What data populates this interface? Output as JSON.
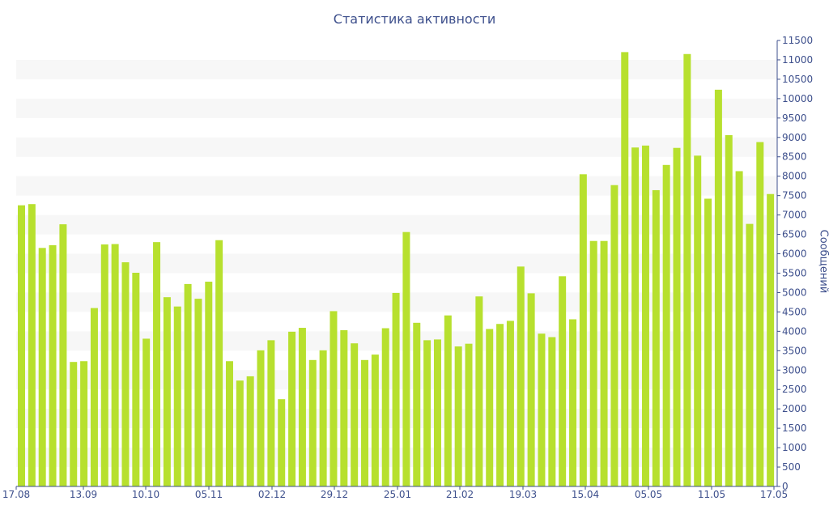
{
  "chart_data": {
    "type": "bar",
    "title": "Статистика активности",
    "xlabel": "",
    "ylabel": "Сообщений",
    "ylim": [
      0,
      11500
    ],
    "y_ticks": [
      0,
      500,
      1000,
      1500,
      2000,
      2500,
      3000,
      3500,
      4000,
      4500,
      5000,
      5500,
      6000,
      6500,
      7000,
      7500,
      8000,
      8500,
      9000,
      9500,
      10000,
      10500,
      11000,
      11500
    ],
    "x_tick_labels": [
      "17.08",
      "13.09",
      "10.10",
      "05.11",
      "02.12",
      "29.12",
      "25.01",
      "21.02",
      "19.03",
      "15.04",
      "05.05",
      "11.05",
      "17.05"
    ],
    "grid": "horizontal bands",
    "bar_color": "#b7e02e",
    "band_color": "#f7f7f7",
    "axis_color": "#3d4f8c",
    "values": [
      7250,
      7280,
      6150,
      6220,
      6760,
      3210,
      3230,
      4600,
      6240,
      6250,
      5780,
      5510,
      3810,
      6300,
      4880,
      4640,
      5220,
      4840,
      5280,
      6350,
      3230,
      2730,
      2840,
      3510,
      3770,
      2250,
      3990,
      4090,
      3260,
      3510,
      4520,
      4030,
      3690,
      3260,
      3400,
      4080,
      4990,
      6560,
      4220,
      3770,
      3790,
      4410,
      3610,
      3680,
      4900,
      4060,
      4190,
      4270,
      5670,
      4980,
      3940,
      3850,
      5420,
      4310,
      8050,
      6330,
      6330,
      7770,
      11200,
      8740,
      8790,
      7640,
      8290,
      8730,
      11150,
      8530,
      7420,
      10230,
      9060,
      8130,
      6770,
      8880,
      7540
    ]
  }
}
